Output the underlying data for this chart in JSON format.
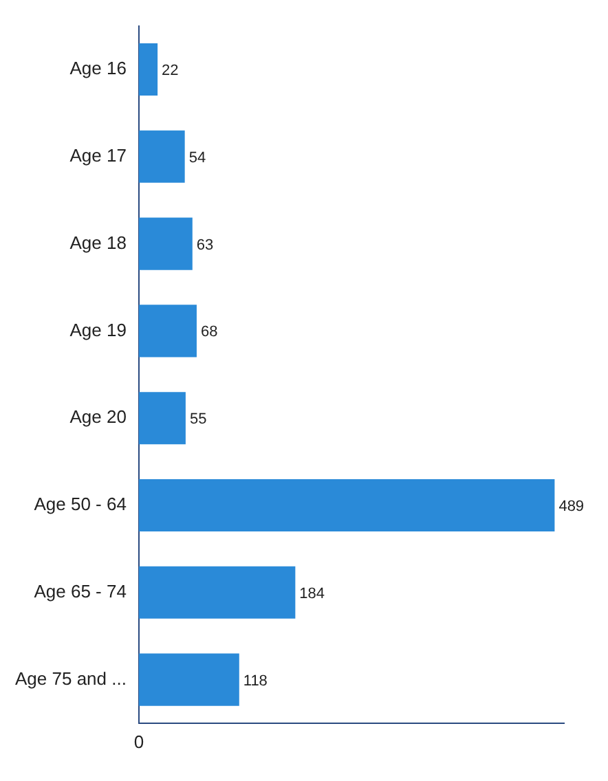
{
  "chart_data": {
    "type": "bar",
    "orientation": "horizontal",
    "categories": [
      "Age 16",
      "Age 17",
      "Age 18",
      "Age 19",
      "Age 20",
      "Age 50 - 64",
      "Age 65 - 74",
      "Age 75 and ..."
    ],
    "values": [
      22,
      54,
      63,
      68,
      55,
      489,
      184,
      118
    ],
    "color": "#2a8ad8",
    "data_labels": true,
    "annotations": [
      "0"
    ]
  }
}
